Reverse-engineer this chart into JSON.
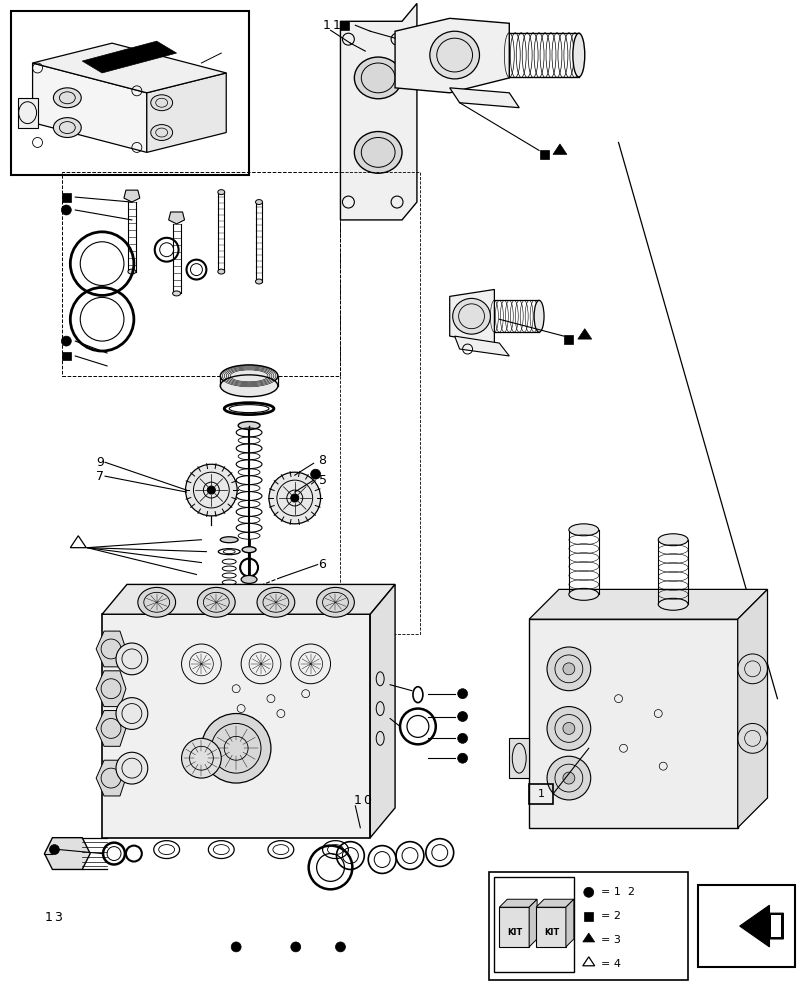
{
  "bg_color": "#ffffff",
  "fig_width": 8.12,
  "fig_height": 10.0
}
